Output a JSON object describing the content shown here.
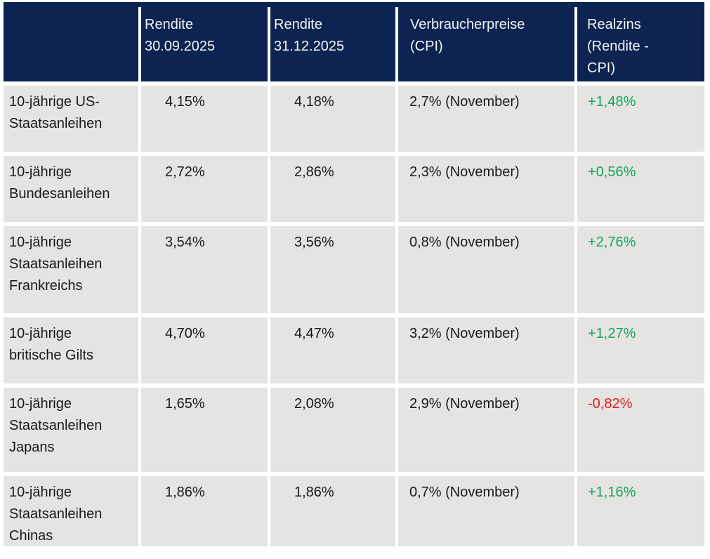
{
  "colors": {
    "header_bg": "#0d2452",
    "header_text": "#f5f5f5",
    "cell_bg": "#e5e4e2",
    "body_text": "#1a1a1a",
    "positive": "#14a35c",
    "negative": "#e01b1c"
  },
  "table": {
    "header": {
      "col_label": "",
      "col_rendite_1": "Rendite\n30.09.2025",
      "col_rendite_2": "Rendite\n31.12.2025",
      "col_cpi": "Verbraucherpreise\n(CPI)",
      "col_realzins": "Realzins\n(Rendite -\nCPI)"
    },
    "rows": [
      {
        "label": "10-jährige US-\nStaatsanleihen",
        "rendite_1": "4,15%",
        "rendite_2": "4,18%",
        "cpi": "2,7% (November)",
        "realzins": "+1,48%",
        "trend": "positive"
      },
      {
        "label": "10-jährige\nBundesanleihen",
        "rendite_1": "2,72%",
        "rendite_2": "2,86%",
        "cpi": "2,3% (November)",
        "realzins": "+0,56%",
        "trend": "positive"
      },
      {
        "label": "10-jährige\nStaatsanleihen\nFrankreichs",
        "rendite_1": "3,54%",
        "rendite_2": "3,56%",
        "cpi": "0,8% (November)",
        "realzins": "+2,76%",
        "trend": "positive"
      },
      {
        "label": "10-jährige\nbritische Gilts",
        "rendite_1": "4,70%",
        "rendite_2": "4,47%",
        "cpi": "3,2% (November)",
        "realzins": "+1,27%",
        "trend": "positive"
      },
      {
        "label": "10-jährige\nStaatsanleihen\nJapans",
        "rendite_1": "1,65%",
        "rendite_2": "2,08%",
        "cpi": "2,9% (November)",
        "realzins": "-0,82%",
        "trend": "negative"
      },
      {
        "label": "10-jährige\nStaatsanleihen\nChinas",
        "rendite_1": "1,86%",
        "rendite_2": "1,86%",
        "cpi": "0,7% (November)",
        "realzins": "+1,16%",
        "trend": "positive"
      }
    ]
  }
}
